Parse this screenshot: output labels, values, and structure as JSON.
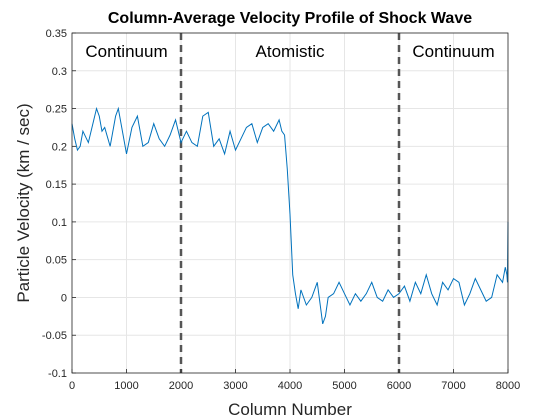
{
  "chart_data": {
    "type": "line",
    "title": "Column-Average Velocity Profile of Shock Wave",
    "xlabel": "Column Number",
    "ylabel": "Particle Velocity (km / sec)",
    "xlim": [
      0,
      8000
    ],
    "ylim": [
      -0.1,
      0.35
    ],
    "xticks": [
      0,
      1000,
      2000,
      3000,
      4000,
      5000,
      6000,
      7000,
      8000
    ],
    "yticks": [
      -0.1,
      -0.05,
      0,
      0.05,
      0.1,
      0.15,
      0.2,
      0.25,
      0.3,
      0.35
    ],
    "xtick_labels": [
      "0",
      "1000",
      "2000",
      "3000",
      "4000",
      "5000",
      "6000",
      "7000",
      "8000"
    ],
    "ytick_labels": [
      "-0.1",
      "-0.05",
      "0",
      "0.05",
      "0.1",
      "0.15",
      "0.2",
      "0.25",
      "0.3",
      "0.35"
    ],
    "grid": true,
    "line_color": "#0072BD",
    "divider_color": "#555555",
    "dividers": [
      2000,
      6000
    ],
    "regions": [
      {
        "label": "Continuum",
        "x": 1000
      },
      {
        "label": "Atomistic",
        "x": 4000
      },
      {
        "label": "Continuum",
        "x": 7000
      }
    ],
    "series": [
      {
        "x": [
          0,
          50,
          100,
          150,
          200,
          300,
          400,
          450,
          500,
          550,
          600,
          700,
          800,
          850,
          900,
          1000,
          1100,
          1200,
          1300,
          1400,
          1500,
          1600,
          1700,
          1800,
          1900,
          2000,
          2100,
          2200,
          2300,
          2400,
          2500,
          2600,
          2700,
          2800,
          2900,
          3000,
          3100,
          3200,
          3300,
          3400,
          3500,
          3600,
          3700,
          3800,
          3850,
          3900,
          3950,
          4000,
          4050,
          4100,
          4150,
          4200,
          4300,
          4400,
          4500,
          4600,
          4650,
          4700,
          4800,
          4900,
          5000,
          5100,
          5200,
          5300,
          5400,
          5500,
          5600,
          5700,
          5800,
          5900,
          6000,
          6100,
          6200,
          6300,
          6400,
          6500,
          6600,
          6700,
          6800,
          6900,
          7000,
          7100,
          7200,
          7300,
          7400,
          7500,
          7600,
          7700,
          7800,
          7900,
          7950,
          7980,
          7990,
          8000
        ],
        "y": [
          0.23,
          0.21,
          0.195,
          0.2,
          0.22,
          0.205,
          0.235,
          0.25,
          0.24,
          0.22,
          0.225,
          0.2,
          0.24,
          0.25,
          0.23,
          0.19,
          0.225,
          0.24,
          0.2,
          0.205,
          0.23,
          0.21,
          0.2,
          0.215,
          0.235,
          0.205,
          0.22,
          0.205,
          0.2,
          0.24,
          0.245,
          0.2,
          0.21,
          0.19,
          0.22,
          0.195,
          0.21,
          0.225,
          0.23,
          0.205,
          0.225,
          0.23,
          0.22,
          0.235,
          0.22,
          0.215,
          0.17,
          0.11,
          0.03,
          0.005,
          -0.015,
          0.01,
          -0.01,
          0.0,
          0.02,
          -0.035,
          -0.025,
          0.0,
          0.005,
          0.02,
          0.005,
          -0.01,
          0.005,
          -0.005,
          0.005,
          0.02,
          0.0,
          -0.005,
          0.01,
          0.0,
          0.005,
          0.015,
          -0.005,
          0.02,
          0.005,
          0.03,
          0.005,
          -0.01,
          0.02,
          0.01,
          0.025,
          0.02,
          -0.01,
          0.005,
          0.025,
          0.01,
          -0.005,
          0.0,
          0.03,
          0.02,
          0.04,
          0.03,
          0.02,
          0.1
        ]
      }
    ]
  }
}
